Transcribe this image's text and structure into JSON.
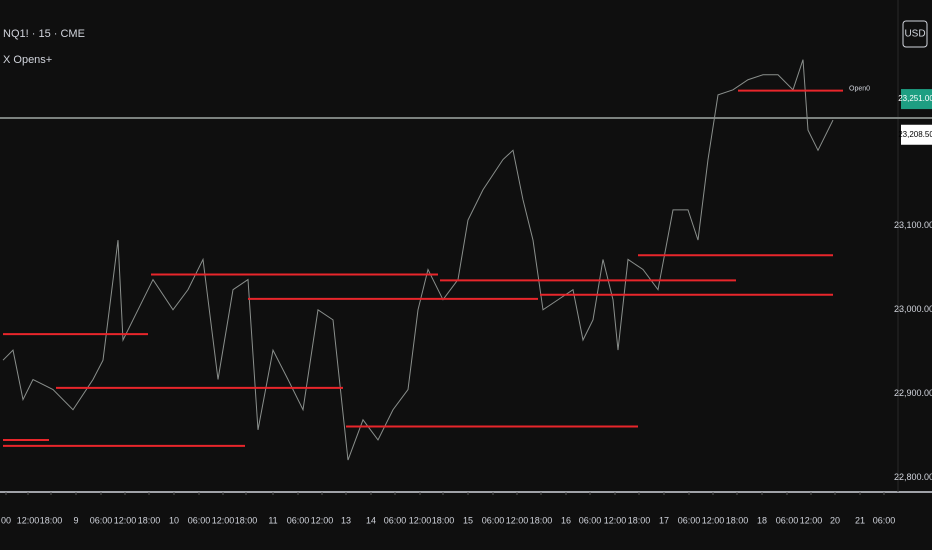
{
  "chart_data": {
    "type": "line",
    "title": "NQ1! · 15 · CME",
    "subtitle": "X Opens+",
    "currency": "USD",
    "x": [
      0,
      10,
      20,
      30,
      50,
      70,
      90,
      100,
      115,
      120,
      135,
      150,
      170,
      185,
      200,
      215,
      230,
      245,
      255,
      270,
      285,
      300,
      315,
      330,
      345,
      360,
      375,
      390,
      405,
      415,
      425,
      440,
      455,
      465,
      480,
      500,
      510,
      520,
      530,
      540,
      555,
      570,
      580,
      590,
      600,
      610,
      615,
      625,
      640,
      655,
      670,
      685,
      695,
      705,
      715,
      730,
      745,
      760,
      775,
      790,
      800,
      805,
      815,
      830
    ],
    "series": [
      {
        "name": "NQ1!",
        "color": "#8a8f8c",
        "values": [
          22940,
          22952,
          22893,
          22917,
          22905,
          22881,
          22917,
          22940,
          23083,
          22964,
          23000,
          23036,
          23000,
          23024,
          23060,
          22917,
          23024,
          23036,
          22857,
          22952,
          22917,
          22881,
          23000,
          22988,
          22821,
          22869,
          22845,
          22881,
          22905,
          23000,
          23048,
          23012,
          23036,
          23107,
          23143,
          23179,
          23190,
          23131,
          23083,
          23000,
          23012,
          23024,
          22964,
          22988,
          23060,
          23012,
          22952,
          23060,
          23048,
          23024,
          23119,
          23119,
          23083,
          23179,
          23256,
          23262,
          23274,
          23280,
          23280,
          23262,
          23298,
          23214,
          23190,
          23226
        ]
      }
    ],
    "opens": {
      "color": "#e8262b",
      "label": "Open0",
      "levels": [
        {
          "start": 0,
          "end": 145,
          "value": 22971
        },
        {
          "start": 0,
          "end": 46,
          "value": 22845
        },
        {
          "start": 0,
          "end": 242,
          "value": 22838
        },
        {
          "start": 53,
          "end": 340,
          "value": 22907
        },
        {
          "start": 148,
          "end": 435,
          "value": 23042
        },
        {
          "start": 245,
          "end": 535,
          "value": 23013
        },
        {
          "start": 343,
          "end": 635,
          "value": 22861
        },
        {
          "start": 437,
          "end": 733,
          "value": 23035
        },
        {
          "start": 537,
          "end": 830,
          "value": 23018
        },
        {
          "start": 635,
          "end": 830,
          "value": 23065
        },
        {
          "start": 735,
          "end": 840,
          "value": 23261
        }
      ]
    },
    "crosshair": 23228.5,
    "price_tags": [
      {
        "value": 23251,
        "label": "23,251.00",
        "color": "#1e9e82",
        "text_color": "#ffffff"
      },
      {
        "value": 23208.5,
        "label": "23,208.50",
        "color": "#ffffff",
        "text_color": "#000000"
      }
    ],
    "xlim": [
      -3,
      895
    ],
    "ylim": [
      22783,
      23369
    ],
    "yticks": [
      {
        "value": 23100,
        "label": "23,100.00"
      },
      {
        "value": 23000,
        "label": "23,000.00"
      },
      {
        "value": 22900,
        "label": "22,900.00"
      },
      {
        "value": 22800,
        "label": "22,800.00"
      }
    ],
    "xticks": [
      {
        "value": 3,
        "label": "00"
      },
      {
        "value": 25,
        "label": "12:00"
      },
      {
        "value": 48,
        "label": "18:00"
      },
      {
        "value": 73,
        "label": "9"
      },
      {
        "value": 98,
        "label": "06:00"
      },
      {
        "value": 122,
        "label": "12:00"
      },
      {
        "value": 146,
        "label": "18:00"
      },
      {
        "value": 171,
        "label": "10"
      },
      {
        "value": 196,
        "label": "06:00"
      },
      {
        "value": 220,
        "label": "12:00"
      },
      {
        "value": 243,
        "label": "18:00"
      },
      {
        "value": 270,
        "label": "11"
      },
      {
        "value": 295,
        "label": "06:00"
      },
      {
        "value": 319,
        "label": "12:00"
      },
      {
        "value": 343,
        "label": "13"
      },
      {
        "value": 368,
        "label": "14"
      },
      {
        "value": 392,
        "label": "06:00"
      },
      {
        "value": 417,
        "label": "12:00"
      },
      {
        "value": 440,
        "label": "18:00"
      },
      {
        "value": 465,
        "label": "15"
      },
      {
        "value": 490,
        "label": "06:00"
      },
      {
        "value": 514,
        "label": "12:00"
      },
      {
        "value": 538,
        "label": "18:00"
      },
      {
        "value": 563,
        "label": "16"
      },
      {
        "value": 587,
        "label": "06:00"
      },
      {
        "value": 612,
        "label": "12:00"
      },
      {
        "value": 636,
        "label": "18:00"
      },
      {
        "value": 661,
        "label": "17"
      },
      {
        "value": 686,
        "label": "06:00"
      },
      {
        "value": 710,
        "label": "12:00"
      },
      {
        "value": 734,
        "label": "18:00"
      },
      {
        "value": 759,
        "label": "18"
      },
      {
        "value": 784,
        "label": "06:00"
      },
      {
        "value": 808,
        "label": "12:00"
      },
      {
        "value": 832,
        "label": "20"
      },
      {
        "value": 857,
        "label": "21"
      },
      {
        "value": 881,
        "label": "06:00"
      }
    ]
  }
}
